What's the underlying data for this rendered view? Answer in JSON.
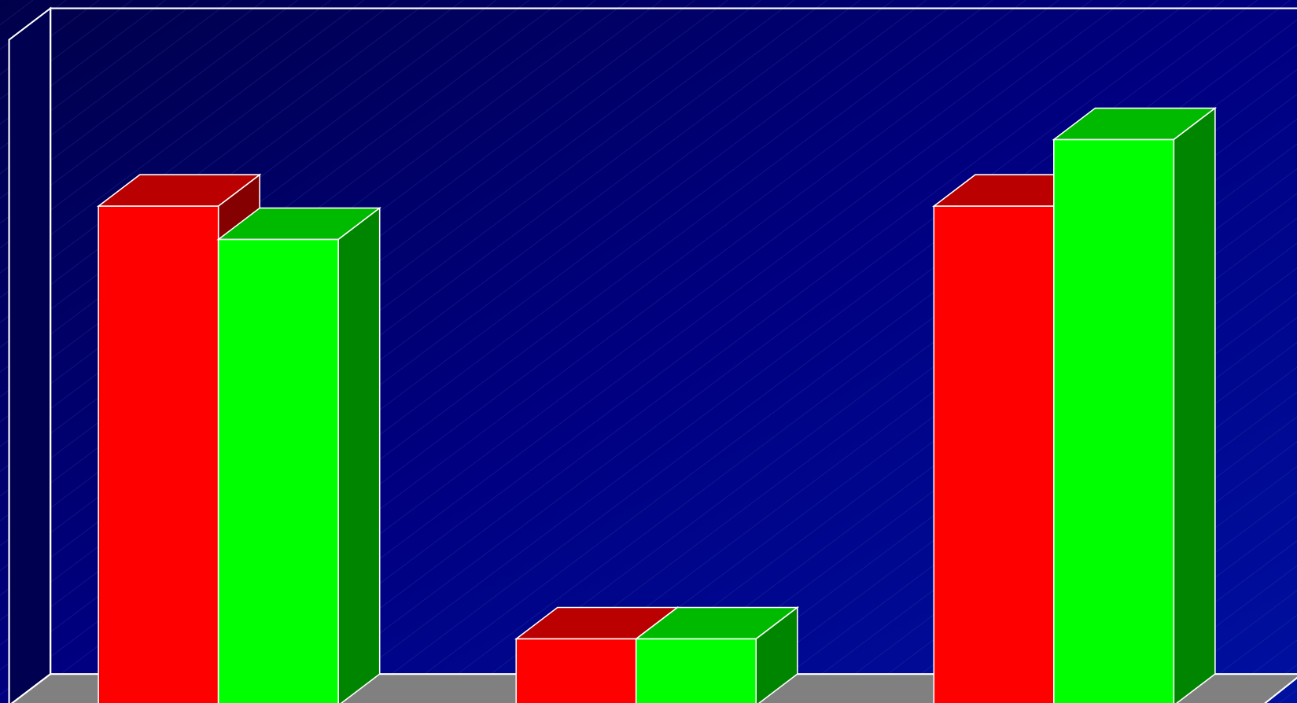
{
  "chart_data": {
    "type": "bar3d",
    "categories": [
      null,
      null,
      null
    ],
    "series": [
      {
        "color": "#ff0000",
        "values": [
          75,
          10,
          75
        ]
      },
      {
        "color": "#00ff00",
        "values": [
          70,
          10,
          85
        ]
      }
    ],
    "ylim": [
      0,
      100
    ]
  }
}
